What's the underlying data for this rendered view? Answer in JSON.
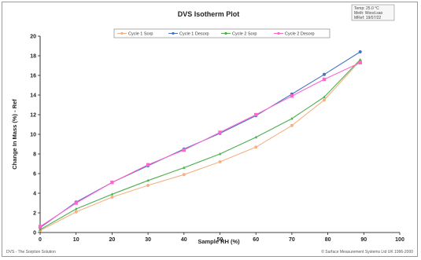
{
  "chart_data": {
    "type": "line",
    "title": "DVS Isotherm Plot",
    "info_box": [
      "Temp: 25.0 °C",
      "Meth: Wood.sao",
      "MRef: 19/07/22"
    ],
    "xlabel": "Sample RH (%)",
    "ylabel": "Change In Mass (%) - Ref",
    "xlim": [
      0,
      100
    ],
    "ylim": [
      0,
      20
    ],
    "x_ticks": [
      "0",
      "10",
      "20",
      "30",
      "40",
      "50",
      "60",
      "70",
      "80",
      "90",
      "100"
    ],
    "y_ticks": [
      "0",
      "2",
      "4",
      "6",
      "8",
      "10",
      "12",
      "14",
      "16",
      "18",
      "20"
    ],
    "grid": false,
    "legend_position": "top",
    "series": [
      {
        "name": "Cycle 1 Sorp",
        "color": "#f4b183",
        "marker": "circle",
        "x": [
          0,
          10,
          20,
          30,
          40,
          50,
          60,
          70,
          79,
          89
        ],
        "y": [
          0.2,
          2.1,
          3.6,
          4.8,
          5.9,
          7.2,
          8.7,
          10.9,
          13.5,
          17.5
        ]
      },
      {
        "name": "Cycle 1 Desorp",
        "color": "#4472c4",
        "marker": "circle",
        "x": [
          0,
          10,
          20,
          30,
          40,
          50,
          60,
          70,
          79,
          89
        ],
        "y": [
          0.5,
          3.1,
          5.1,
          6.8,
          8.5,
          10.1,
          11.9,
          14.1,
          16.1,
          18.4
        ]
      },
      {
        "name": "Cycle 2 Sorp",
        "color": "#4caf50",
        "marker": "triangle",
        "x": [
          0,
          10,
          20,
          30,
          40,
          50,
          60,
          70,
          79,
          89
        ],
        "y": [
          0.3,
          2.4,
          3.9,
          5.3,
          6.6,
          8.0,
          9.7,
          11.6,
          13.8,
          17.6
        ]
      },
      {
        "name": "Cycle 2 Desorp",
        "color": "#ff66cc",
        "marker": "square",
        "x": [
          0,
          10,
          20,
          30,
          40,
          50,
          60,
          70,
          79,
          89
        ],
        "y": [
          0.6,
          3.0,
          5.1,
          6.9,
          8.4,
          10.2,
          12.0,
          13.9,
          15.6,
          17.3
        ]
      }
    ],
    "footer_left": "DVS - The Sorption Solution",
    "footer_right": "© Surface Measurement Systems Ltd UK 1996-2000"
  }
}
